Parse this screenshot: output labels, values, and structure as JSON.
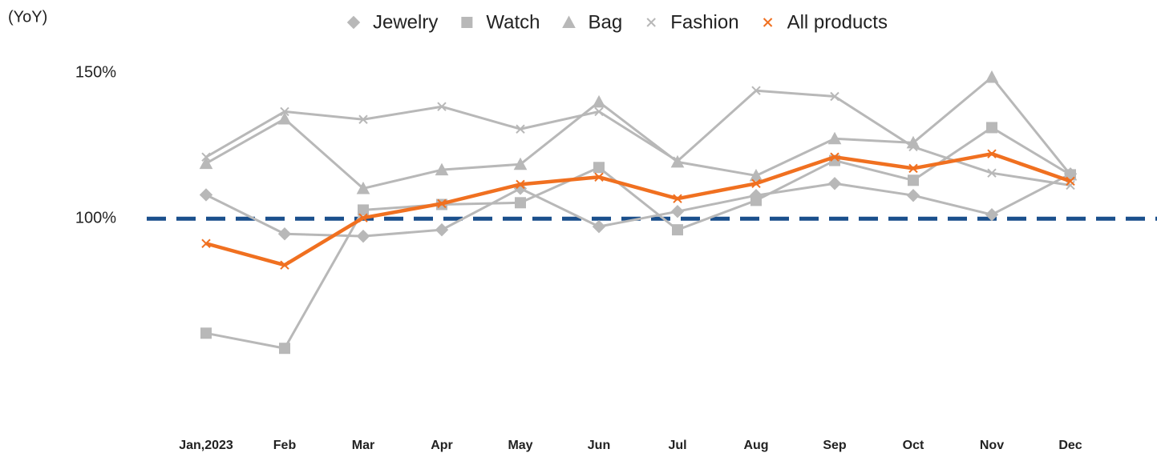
{
  "chart_data": {
    "type": "line",
    "y_label": "(YoY)",
    "categories": [
      "Jan,2023",
      "Feb",
      "Mar",
      "Apr",
      "May",
      "Jun",
      "Jul",
      "Aug",
      "Sep",
      "Oct",
      "Nov",
      "Dec"
    ],
    "series": [
      {
        "name": "Jewelry",
        "color": "#b8b8b8",
        "marker": "diamond",
        "values": [
          108.2,
          94.8,
          94.0,
          96.2,
          110.4,
          97.3,
          102.5,
          108.0,
          112.1,
          108.0,
          101.4,
          115.4
        ]
      },
      {
        "name": "Watch",
        "color": "#b8b8b8",
        "marker": "square",
        "values": [
          60.7,
          55.5,
          103.0,
          104.9,
          105.5,
          117.6,
          96.2,
          106.3,
          120.0,
          113.2,
          131.3,
          115.1
        ]
      },
      {
        "name": "Bag",
        "color": "#b8b8b8",
        "marker": "triangle",
        "values": [
          119.0,
          134.3,
          110.4,
          116.8,
          118.7,
          140.1,
          119.5,
          114.8,
          127.5,
          126.1,
          148.6,
          115.1
        ]
      },
      {
        "name": "Fashion",
        "color": "#b8b8b8",
        "marker": "x",
        "values": [
          121.2,
          136.8,
          134.1,
          138.5,
          130.8,
          136.8,
          119.8,
          144.0,
          142.0,
          124.7,
          115.7,
          111.5
        ]
      },
      {
        "name": "All products",
        "color": "#f07020",
        "marker": "x",
        "values": [
          91.5,
          84.1,
          100.3,
          105.2,
          111.8,
          114.3,
          106.9,
          112.1,
          121.2,
          117.3,
          122.3,
          112.9
        ]
      }
    ],
    "reference_line": {
      "value": 100,
      "color": "#1a4f8c"
    },
    "ylim": [
      30,
      160
    ],
    "yticks": [
      {
        "value": 100,
        "label": "100%"
      },
      {
        "value": 150,
        "label": "150%"
      }
    ],
    "grid": false,
    "legend": "top"
  }
}
